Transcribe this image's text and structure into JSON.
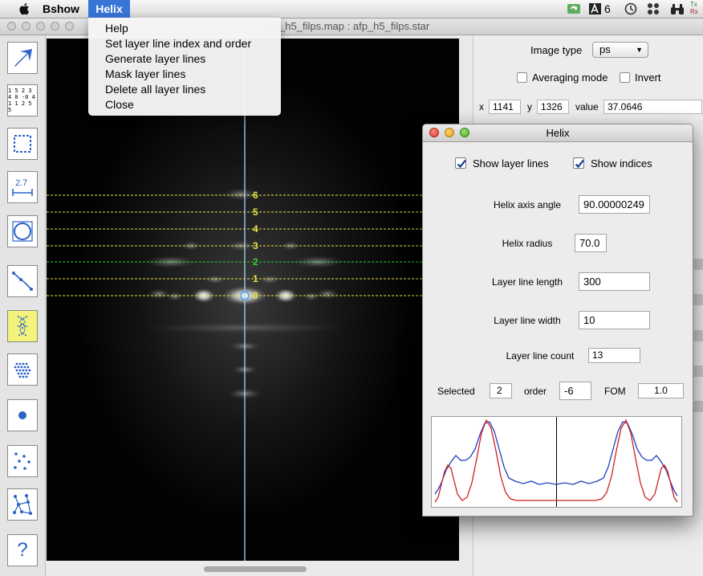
{
  "menubar": {
    "app_name": "Bshow",
    "active_menu": "Helix",
    "status_number": "6",
    "tx_label": "Tx",
    "rx_label": "Rx"
  },
  "main_window": {
    "title": "afp_h5_filps.map : afp_h5_filps.star"
  },
  "helix_menu": {
    "items": [
      "Help",
      "Set layer line index and order",
      "Generate layer lines",
      "Mask layer lines",
      "Delete all layer lines",
      "Close"
    ]
  },
  "toolbar": {
    "tools": [
      "pointer-tool",
      "values-tool",
      "box-select-tool",
      "measure-tool",
      "circle-tool",
      "line-tool",
      "helix-tool",
      "lattice-tool",
      "spot-tool",
      "scatter-tool",
      "network-tool",
      "help-tool"
    ],
    "values_icon_text": [
      "1 5 2 3",
      "4 0 -0 4",
      "1 1 2 5 5"
    ],
    "measure_icon_text": "2.7",
    "help_icon_text": "?"
  },
  "image_panel": {
    "layer_line_labels": [
      "6",
      "5",
      "4",
      "3",
      "2",
      "1",
      "0"
    ],
    "colors": {
      "yellow_line": "#e8e34a",
      "green_line": "#37d12d",
      "axis": "#a9d7f5"
    }
  },
  "right_panel": {
    "image_type_label": "Image type",
    "image_type_value": "ps",
    "averaging_mode_label": "Averaging mode",
    "invert_label": "Invert",
    "x_label": "x",
    "x_value": "1141",
    "y_label": "y",
    "y_value": "1326",
    "value_label": "value",
    "value_value": "37.0646"
  },
  "helix_dialog": {
    "title": "Helix",
    "show_layer_lines_label": "Show layer lines",
    "show_layer_lines_checked": true,
    "show_indices_label": "Show indices",
    "show_indices_checked": true,
    "axis_angle_label": "Helix axis angle",
    "axis_angle_value": "90.00000249",
    "radius_label": "Helix radius",
    "radius_value": "70.0",
    "ll_length_label": "Layer line length",
    "ll_length_value": "300",
    "ll_width_label": "Layer line width",
    "ll_width_value": "10",
    "ll_count_label": "Layer line count",
    "ll_count_value": "13",
    "selected_label": "Selected",
    "selected_value": "2",
    "order_label": "order",
    "order_value": "-6",
    "fom_label": "FOM",
    "fom_value": "1.0",
    "colors": {
      "blue_curve": "#1f3fbf",
      "red_curve": "#d21f1f"
    }
  }
}
